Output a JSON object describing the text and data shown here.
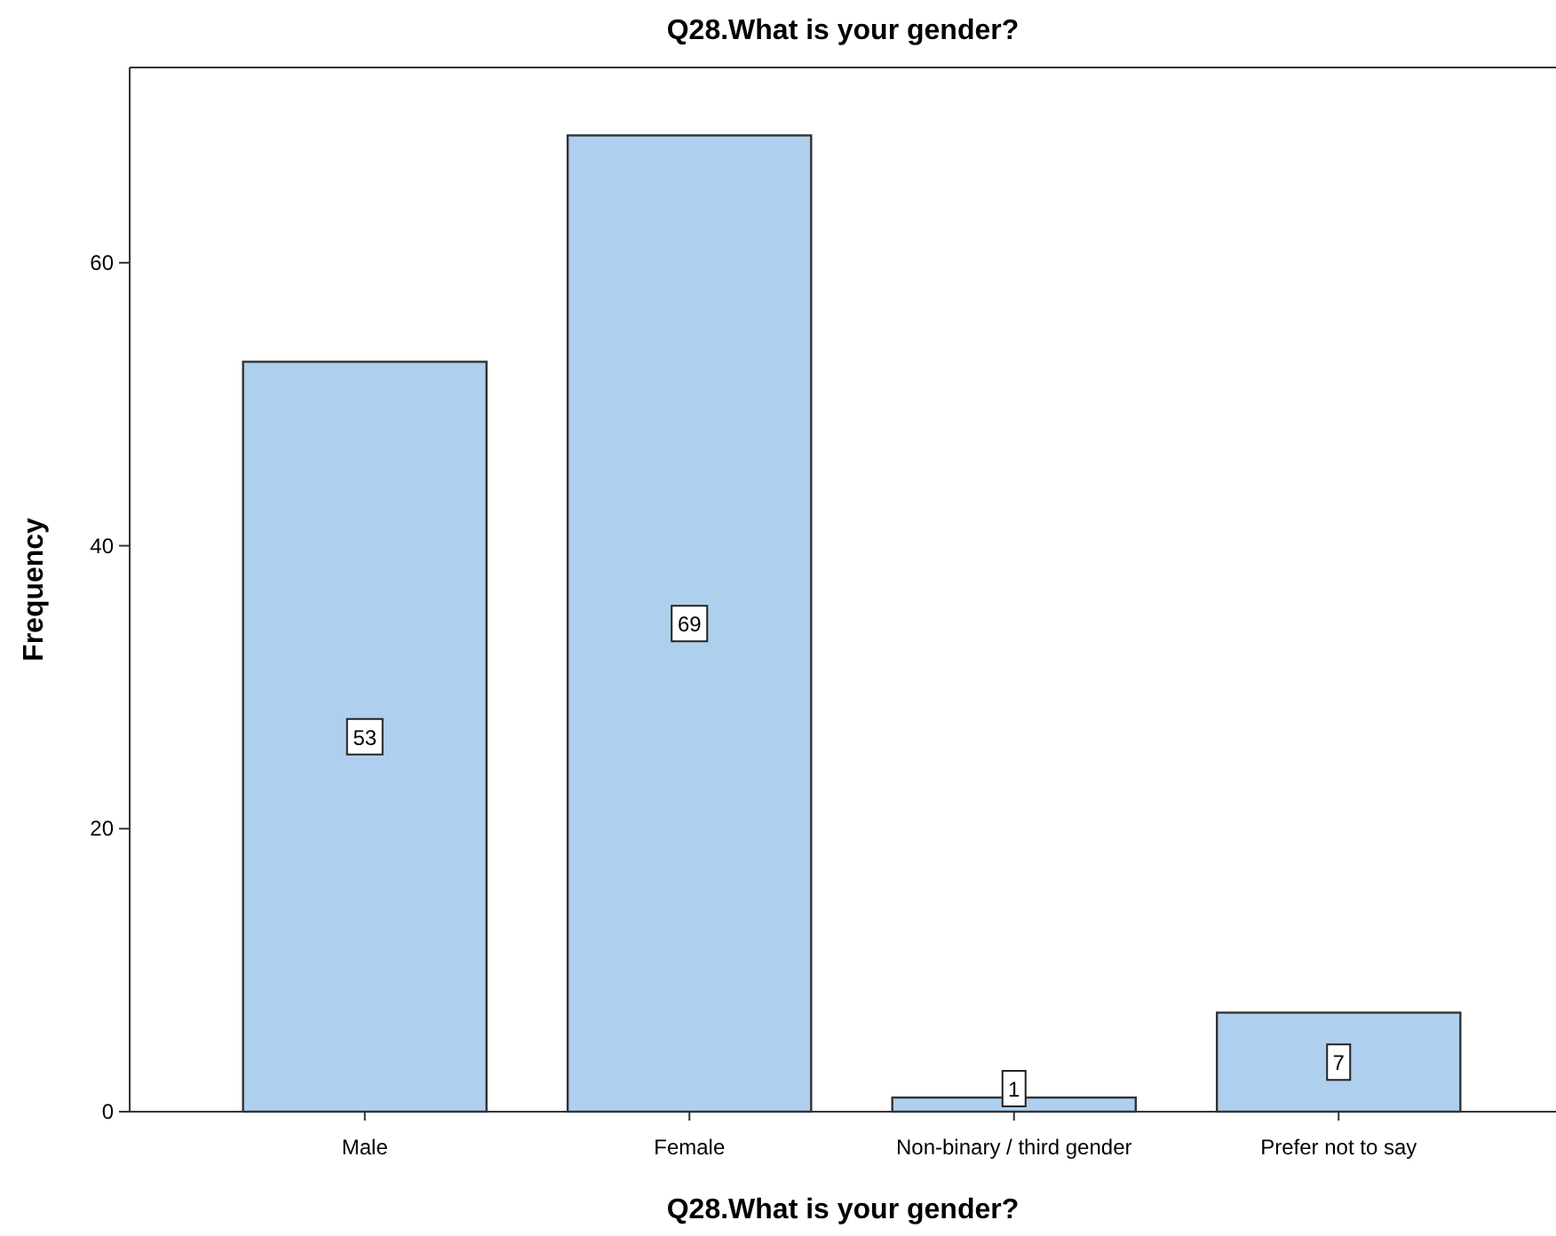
{
  "chart_data": {
    "type": "bar",
    "title": "Q28.What is your gender?",
    "xlabel": "Q28.What is your gender?",
    "ylabel": "Frequency",
    "categories": [
      "Male",
      "Female",
      "Non-binary / third gender",
      "Prefer not to say"
    ],
    "values": [
      53,
      69,
      1,
      7
    ],
    "color": "#aed0ee",
    "ylim": [
      0,
      73.8
    ],
    "yticks": [
      0,
      20,
      40,
      60
    ],
    "data_labels": true
  }
}
